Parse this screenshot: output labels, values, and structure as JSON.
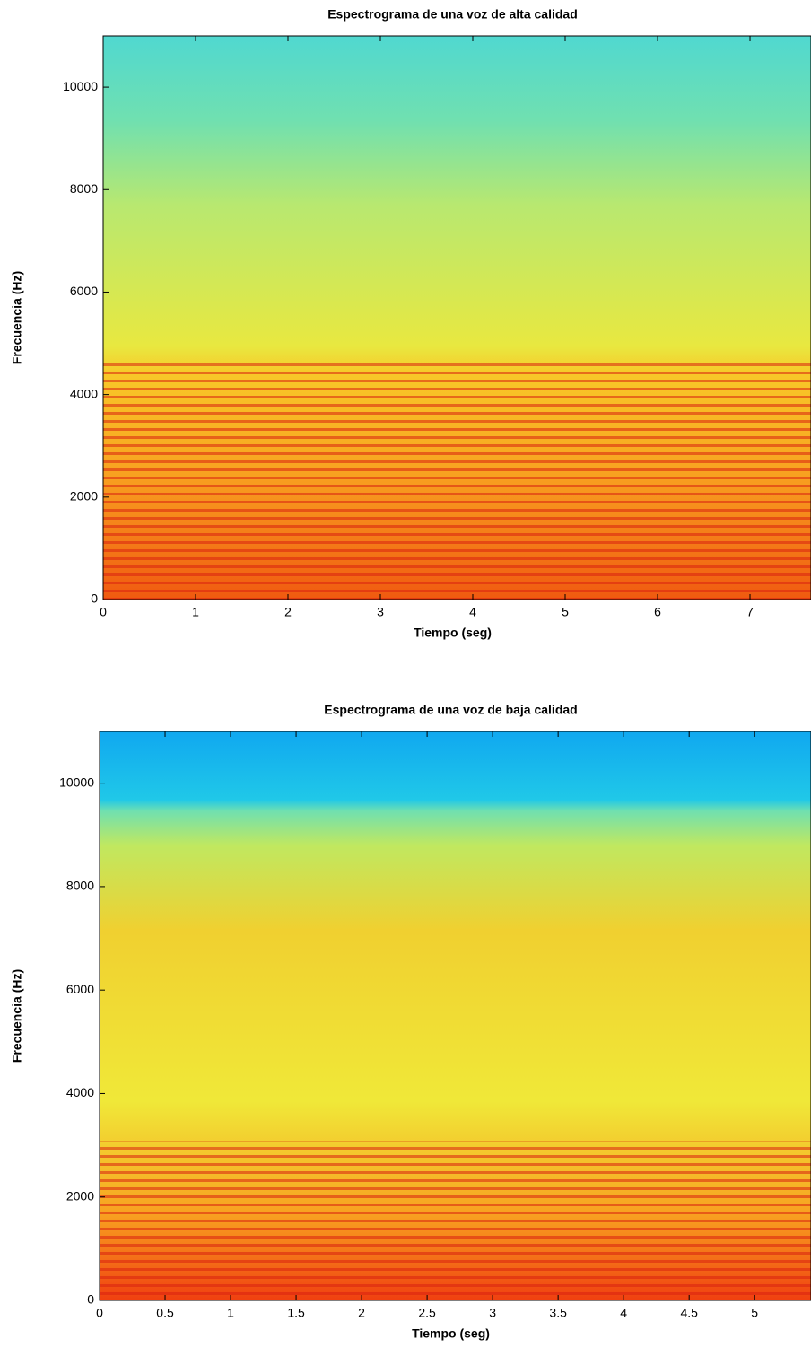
{
  "chart_data": [
    {
      "type": "spectrogram",
      "title": "Espectrograma de una voz de alta calidad",
      "x_label": "Tiempo (seg)",
      "y_label": "Frecuencia (Hz)",
      "xlim": [
        0,
        7.66
      ],
      "xticks": [
        0,
        1,
        2,
        3,
        4,
        5,
        6,
        7
      ],
      "ylim": [
        0,
        11000
      ],
      "yticks": [
        0,
        2000,
        4000,
        6000,
        8000,
        10000
      ]
    },
    {
      "type": "spectrogram",
      "title": "Espectrograma de una voz de baja calidad",
      "x_label": "Tiempo (seg)",
      "y_label": "Frecuencia (Hz)",
      "xlim": [
        0,
        5.43
      ],
      "xticks": [
        0,
        0.5,
        1,
        1.5,
        2,
        2.5,
        3,
        3.5,
        4,
        4.5,
        5
      ],
      "ylim": [
        0,
        11000
      ],
      "yticks": [
        0,
        2000,
        4000,
        6000,
        8000,
        10000
      ]
    }
  ]
}
